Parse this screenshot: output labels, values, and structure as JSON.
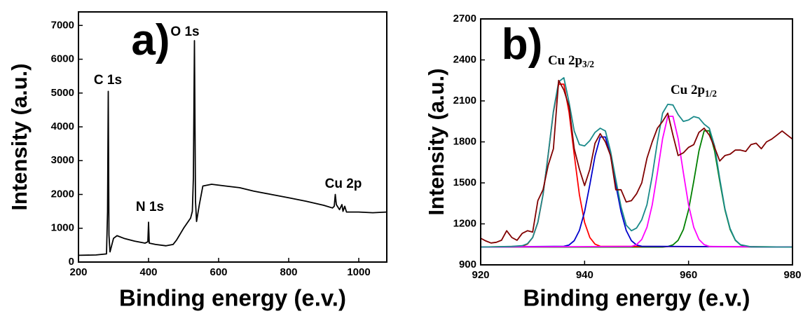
{
  "chart_data": [
    {
      "type": "line",
      "x_label": "Binding energy (e.v.)",
      "y_label": "Intensity (a.u.)",
      "xlim": [
        200,
        1080
      ],
      "ylim": [
        0,
        7400
      ],
      "xticks": [
        200,
        400,
        600,
        800,
        1000
      ],
      "yticks": [
        0,
        1000,
        2000,
        3000,
        4000,
        5000,
        6000,
        7000
      ],
      "annotations": [
        {
          "text": "a)"
        },
        {
          "text": "O 1s"
        },
        {
          "text": "C 1s"
        },
        {
          "text": "N 1s"
        },
        {
          "text": "Cu 2p"
        }
      ],
      "series": [
        {
          "color": "#000000",
          "x": [
            200,
            250,
            280,
            283,
            285,
            287,
            290,
            300,
            310,
            330,
            360,
            390,
            398,
            400,
            402,
            420,
            450,
            470,
            480,
            500,
            520,
            525,
            528,
            531,
            534,
            537,
            545,
            555,
            580,
            620,
            660,
            700,
            750,
            800,
            850,
            900,
            925,
            930,
            933,
            936,
            945,
            952,
            955,
            960,
            965,
            1000,
            1040,
            1080
          ],
          "values": [
            200,
            210,
            240,
            1500,
            5050,
            800,
            300,
            700,
            780,
            700,
            620,
            560,
            600,
            1180,
            560,
            520,
            480,
            520,
            650,
            1000,
            1300,
            1500,
            2500,
            6550,
            1800,
            1200,
            1700,
            2250,
            2300,
            2250,
            2200,
            2100,
            2000,
            1900,
            1800,
            1680,
            1600,
            1650,
            2000,
            1700,
            1550,
            1700,
            1500,
            1650,
            1480,
            1480,
            1460,
            1480
          ]
        }
      ]
    },
    {
      "type": "line",
      "x_label": "Binding energy (e.v.)",
      "y_label": "Intensity (a.u.)",
      "xlim": [
        920,
        980
      ],
      "ylim": [
        900,
        2700
      ],
      "xticks": [
        920,
        940,
        960,
        980
      ],
      "yticks": [
        900,
        1200,
        1500,
        1800,
        2100,
        2400,
        2700
      ],
      "annotations": [
        {
          "text": "b)"
        },
        {
          "text": "Cu 2p",
          "sub": "3/2"
        },
        {
          "text": "Cu 2p",
          "sub": "1/2"
        }
      ],
      "series": [
        {
          "color": "#008000",
          "x": [
            920,
            955,
            956,
            957,
            958,
            959,
            960,
            961,
            962,
            963,
            964,
            965,
            966,
            967,
            968,
            969,
            970,
            971,
            980
          ],
          "values": [
            1030,
            1030,
            1034,
            1046,
            1080,
            1159,
            1303,
            1512,
            1734,
            1881,
            1881,
            1734,
            1512,
            1303,
            1159,
            1080,
            1046,
            1034,
            1030
          ]
        },
        {
          "color": "#ff0000",
          "x": [
            920,
            928,
            929,
            930,
            931,
            932,
            933,
            934,
            935,
            936,
            937,
            938,
            939,
            940,
            941,
            942,
            943,
            980
          ],
          "values": [
            1030,
            1036,
            1052,
            1100,
            1211,
            1413,
            1706,
            2017,
            2222,
            2222,
            2017,
            1706,
            1413,
            1211,
            1100,
            1052,
            1036,
            1030
          ]
        },
        {
          "color": "#0000cc",
          "x": [
            920,
            936,
            937,
            938,
            939,
            940,
            941,
            942,
            943,
            944,
            945,
            946,
            947,
            948,
            949,
            950,
            951,
            980
          ],
          "values": [
            1030,
            1036,
            1045,
            1077,
            1152,
            1289,
            1487,
            1697,
            1836,
            1836,
            1697,
            1487,
            1289,
            1152,
            1077,
            1045,
            1036,
            1030
          ]
        },
        {
          "color": "#ff00ff",
          "x": [
            920,
            949,
            950,
            951,
            952,
            953,
            954,
            955,
            956,
            957,
            958,
            959,
            960,
            961,
            962,
            963,
            964,
            980
          ],
          "values": [
            1030,
            1035,
            1048,
            1086,
            1175,
            1338,
            1573,
            1823,
            1987,
            1987,
            1823,
            1573,
            1338,
            1175,
            1086,
            1048,
            1035,
            1030
          ]
        },
        {
          "color": "#1a8a8a",
          "x": [
            920,
            926,
            928,
            929,
            930,
            931,
            932,
            933,
            934,
            935,
            936,
            937,
            938,
            939,
            940,
            941,
            942,
            943,
            944,
            945,
            946,
            947,
            948,
            949,
            950,
            951,
            952,
            953,
            954,
            955,
            956,
            957,
            958,
            959,
            960,
            961,
            962,
            963,
            964,
            965,
            966,
            967,
            968,
            969,
            970,
            972,
            980
          ],
          "values": [
            1030,
            1035,
            1040,
            1055,
            1100,
            1212,
            1415,
            1710,
            2025,
            2240,
            2270,
            2090,
            1880,
            1780,
            1770,
            1810,
            1870,
            1900,
            1880,
            1730,
            1525,
            1325,
            1190,
            1150,
            1170,
            1230,
            1340,
            1550,
            1800,
            2010,
            2075,
            2070,
            2000,
            1950,
            1960,
            1985,
            1975,
            1930,
            1900,
            1770,
            1530,
            1310,
            1165,
            1082,
            1047,
            1032,
            1030
          ]
        },
        {
          "color": "#800000",
          "x": [
            920,
            921,
            922,
            923,
            924,
            925,
            926,
            927,
            928,
            929,
            930,
            931,
            932,
            933,
            934,
            935,
            936,
            937,
            938,
            939,
            940,
            941,
            942,
            943,
            944,
            945,
            946,
            947,
            948,
            949,
            950,
            951,
            952,
            953,
            954,
            955,
            956,
            957,
            958,
            959,
            960,
            961,
            962,
            963,
            964,
            965,
            966,
            967,
            968,
            969,
            970,
            971,
            972,
            973,
            974,
            975,
            976,
            977,
            978,
            979,
            980
          ],
          "values": [
            1095,
            1075,
            1060,
            1065,
            1080,
            1150,
            1100,
            1080,
            1130,
            1150,
            1140,
            1370,
            1450,
            1630,
            1750,
            2250,
            2180,
            2060,
            1750,
            1600,
            1480,
            1600,
            1790,
            1860,
            1800,
            1700,
            1450,
            1450,
            1360,
            1370,
            1420,
            1500,
            1680,
            1800,
            1900,
            1950,
            2010,
            1850,
            1700,
            1720,
            1760,
            1780,
            1870,
            1900,
            1850,
            1760,
            1660,
            1700,
            1710,
            1740,
            1740,
            1730,
            1780,
            1790,
            1750,
            1800,
            1820,
            1850,
            1880,
            1850,
            1820
          ]
        }
      ]
    }
  ]
}
